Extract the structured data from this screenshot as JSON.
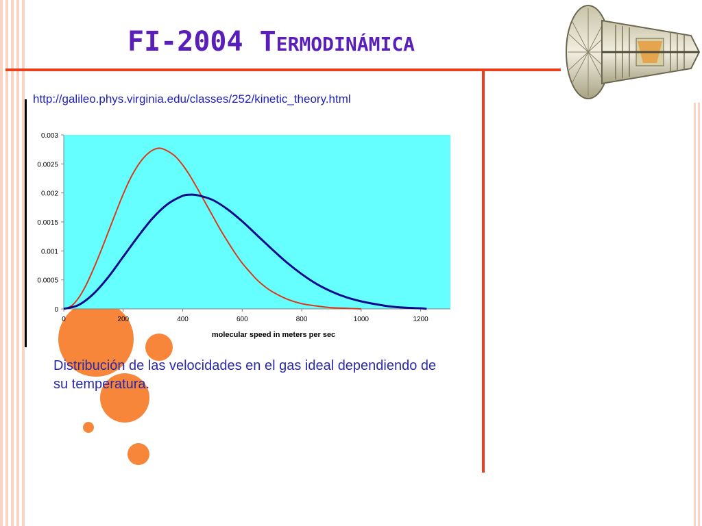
{
  "slide": {
    "title": "FI-2004 Termodinámica",
    "source_url": "http://galileo.phys.virginia.edu/classes/252/kinetic_theory.html",
    "caption": "Distribución de las velocidades en el gas ideal dependiendo de su temperatura."
  },
  "colors": {
    "accent_line": "#e8401c",
    "title": "#5a1fb8",
    "plot_background": "#66ffff",
    "series_low_t": "#d93a1c",
    "series_high_t": "#0a0a8c"
  },
  "chart_data": {
    "type": "line",
    "title": "",
    "xlabel": "molecular speed in meters per sec",
    "ylabel": "",
    "xlim": [
      0,
      1300
    ],
    "ylim": [
      0,
      0.003
    ],
    "x_ticks": [
      "0",
      "200",
      "400",
      "600",
      "800",
      "1000",
      "1200"
    ],
    "y_ticks": [
      "0",
      "0.0005",
      "0.001",
      "0.0015",
      "0.002",
      "0.0025",
      "0.003"
    ],
    "grid": false,
    "legend": "none",
    "series": [
      {
        "color": "#d93a1c",
        "x": [
          0,
          25,
          50,
          75,
          100,
          125,
          150,
          175,
          200,
          225,
          250,
          275,
          300,
          325,
          350,
          375,
          400,
          425,
          450,
          475,
          500,
          525,
          550,
          575,
          600,
          625,
          650,
          675,
          700,
          750,
          800,
          850,
          900,
          950,
          1000
        ],
        "y": [
          0,
          4.9e-05,
          0.00019,
          0.00041,
          0.00069,
          0.001,
          0.00133,
          0.00166,
          0.00198,
          0.00226,
          0.00248,
          0.00264,
          0.00274,
          0.00277,
          0.00272,
          0.00263,
          0.00248,
          0.00229,
          0.00207,
          0.00184,
          0.00161,
          0.00138,
          0.00117,
          0.00097,
          0.00079,
          0.00064,
          0.0005,
          0.00039,
          0.0003,
          0.00017,
          9e-05,
          5e-05,
          2e-05,
          1e-05,
          0
        ]
      },
      {
        "color": "#0a0a8c",
        "x": [
          0,
          50,
          100,
          150,
          200,
          250,
          300,
          350,
          400,
          425,
          450,
          500,
          550,
          600,
          650,
          700,
          750,
          800,
          850,
          900,
          950,
          1000,
          1050,
          1100,
          1150,
          1200,
          1220
        ],
        "y": [
          0,
          6.7e-05,
          0.00026,
          0.00055,
          0.0009,
          0.00125,
          0.00157,
          0.00181,
          0.00195,
          0.00197,
          0.00196,
          0.00188,
          0.00172,
          0.00151,
          0.00127,
          0.00103,
          0.0008,
          0.0006,
          0.00043,
          0.0003,
          0.0002,
          0.00013,
          8e-05,
          4e-05,
          2e-05,
          1e-05,
          0
        ]
      }
    ]
  }
}
